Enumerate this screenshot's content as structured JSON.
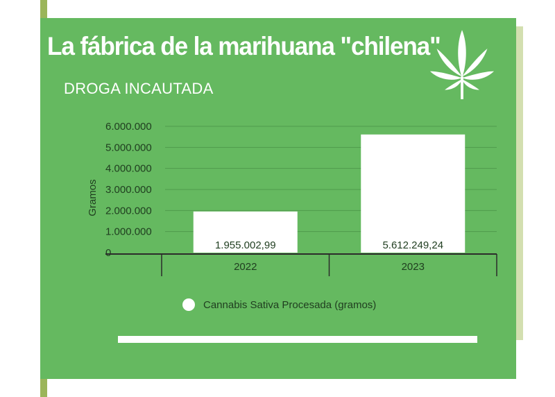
{
  "header": {
    "title": "La fábrica de la marihuana \"chilena\"",
    "subtitle": "DROGA INCAUTADA"
  },
  "icons": {
    "leaf": "cannabis-leaf-icon"
  },
  "colors": {
    "panel": "#65b960",
    "bar": "#ffffff",
    "text_dark": "#1f3d1f",
    "accent": "#9bb55a"
  },
  "chart_data": {
    "type": "bar",
    "categories": [
      "2022",
      "2023"
    ],
    "series": [
      {
        "name": "Cannabis Sativa Procesada (gramos)",
        "values": [
          1955002.99,
          5612249.24
        ]
      }
    ],
    "data_labels": [
      "1.955.002,99",
      "5.612.249,24"
    ],
    "ylabel": "Gramos",
    "xlabel": "",
    "ylim": [
      0,
      6000000
    ],
    "yticks": [
      0,
      1000000,
      2000000,
      3000000,
      4000000,
      5000000,
      6000000
    ],
    "ytick_labels": [
      "0",
      "1.000.000",
      "2.000.000",
      "3.000.000",
      "4.000.000",
      "5.000.000",
      "6.000.000"
    ],
    "grid": true,
    "legend_position": "bottom"
  }
}
